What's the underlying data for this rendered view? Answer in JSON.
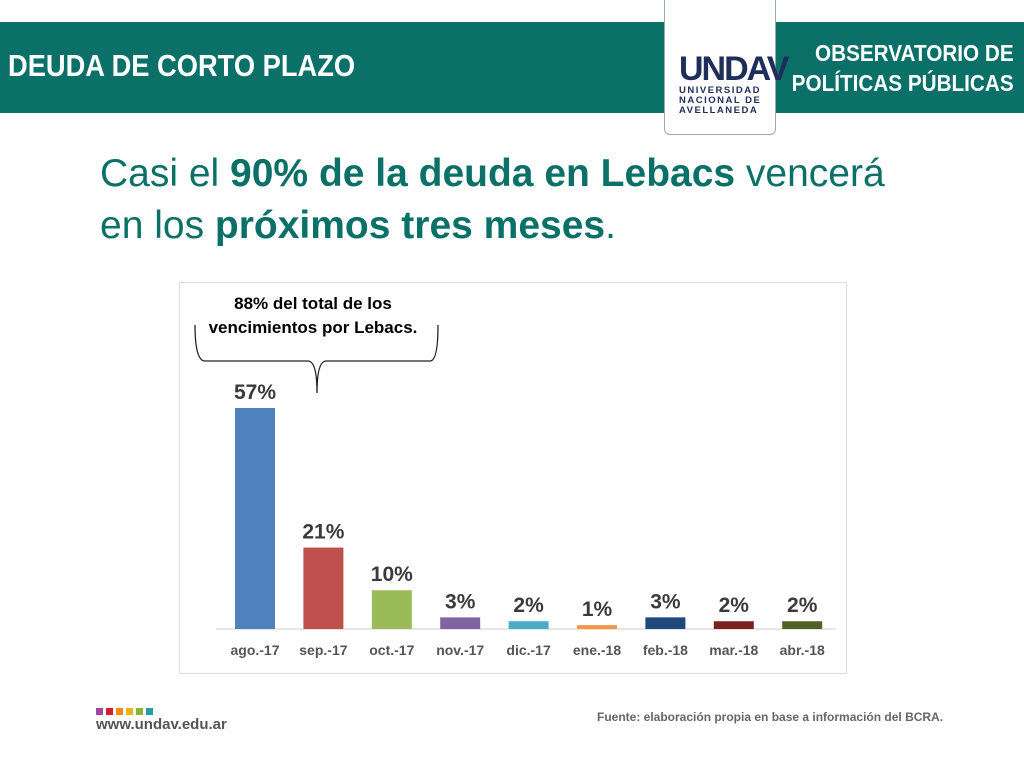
{
  "header": {
    "title": "DEUDA DE CORTO PLAZO",
    "observatory_line1": "OBSERVATORIO DE",
    "observatory_line2": "POLÍTICAS PÚBLICAS",
    "logo": {
      "mark": "UNDAV",
      "line1": "UNIVERSIDAD",
      "line2": "NACIONAL DE",
      "line3": "AVELLANEDA"
    }
  },
  "headline": {
    "p1": "Casi el ",
    "b1": "90% de la deuda en Lebacs",
    "p2": " vencerá",
    "p3": "en los ",
    "b2": "próximos tres meses",
    "p4": "."
  },
  "chart_data": {
    "type": "bar",
    "categories": [
      "ago.-17",
      "sep.-17",
      "oct.-17",
      "nov.-17",
      "dic.-17",
      "ene.-18",
      "feb.-18",
      "mar.-18",
      "abr.-18"
    ],
    "values": [
      57,
      21,
      10,
      3,
      2,
      1,
      3,
      2,
      2
    ],
    "data_labels": [
      "57%",
      "21%",
      "10%",
      "3%",
      "2%",
      "1%",
      "3%",
      "2%",
      "2%"
    ],
    "colors": [
      "#4f81bd",
      "#c0504d",
      "#9bbb59",
      "#8064a2",
      "#4bacc6",
      "#f79646",
      "#1f497d",
      "#7f2020",
      "#4f6228"
    ],
    "annotation": {
      "line1": "88% del total de los",
      "line2": "vencimientos por Lebacs."
    },
    "ylim": [
      0,
      60
    ],
    "grid": false
  },
  "footer": {
    "url": "www.undav.edu.ar",
    "source": "Fuente: elaboración propia en base a información del BCRA.",
    "square_colors": [
      "#a0489a",
      "#d0202e",
      "#f08a1c",
      "#e8b41a",
      "#8cb33a",
      "#2a9aa8"
    ]
  }
}
